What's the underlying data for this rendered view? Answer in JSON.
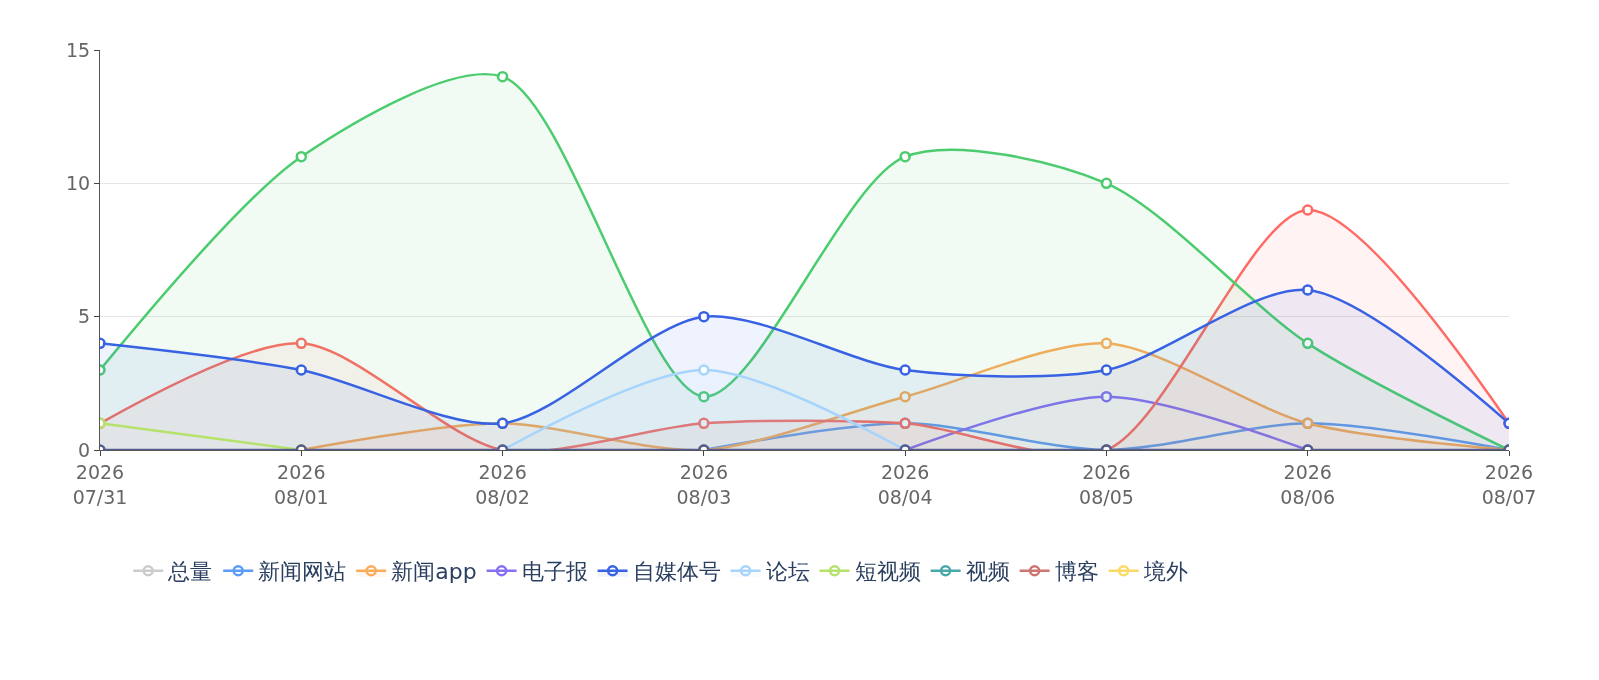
{
  "chart_data": {
    "type": "line",
    "x": [
      "2026-07-31",
      "2026-08-01",
      "2026-08-02",
      "2026-08-03",
      "2026-08-04",
      "2026-08-05",
      "2026-08-06",
      "2026-08-07"
    ],
    "xlim": [
      "2026-07-31",
      "2026-08-07"
    ],
    "xticks": [
      {
        "value": "2026-07-31",
        "label": "2026\n07/31"
      },
      {
        "value": "2026-08-01",
        "label": "2026\n08/01"
      },
      {
        "value": "2026-08-02",
        "label": "2026\n08/02"
      },
      {
        "value": "2026-08-03",
        "label": "2026\n08/03"
      },
      {
        "value": "2026-08-04",
        "label": "2026\n08/04"
      },
      {
        "value": "2026-08-05",
        "label": "2026\n08/05"
      },
      {
        "value": "2026-08-06",
        "label": "2026\n08/06"
      },
      {
        "value": "2026-08-07",
        "label": "2026\n08/07"
      }
    ],
    "ylim": [
      0,
      15
    ],
    "yticks": [
      0,
      5,
      10,
      15
    ],
    "grid": "y",
    "legend": "bottom",
    "marker": "circle",
    "series": [
      {
        "name": "总量",
        "color": "#cccccc",
        "values": [
          null,
          null,
          null,
          null,
          null,
          null,
          null,
          null
        ]
      },
      {
        "name": "新闻网站",
        "color": "#5b9cf8",
        "values": [
          null,
          null,
          null,
          0,
          1,
          0,
          1,
          0
        ]
      },
      {
        "name": "新闻app",
        "color": "#fbab5a",
        "type": "area",
        "values": [
          null,
          0,
          1,
          0,
          2,
          4,
          1,
          0
        ]
      },
      {
        "name": "电子报",
        "color": "#8a6ef3",
        "values": [
          null,
          null,
          null,
          null,
          0,
          2,
          0,
          null
        ]
      },
      {
        "color": "#fe6b64",
        "type": "area",
        "values": [
          1,
          4,
          0,
          1,
          1,
          0,
          9,
          1
        ]
      },
      {
        "color": "#4ccc6f",
        "type": "area",
        "values": [
          3,
          11,
          14,
          2,
          11,
          10,
          4,
          0
        ]
      },
      {
        "name": "自媒体号",
        "color": "#3762e3",
        "type": "area",
        "values": [
          4,
          3,
          1,
          5,
          3,
          3,
          6,
          1
        ]
      },
      {
        "name": "论坛",
        "color": "#a7d4fc",
        "type": "area",
        "values": [
          null,
          null,
          0,
          3,
          0,
          null,
          null,
          null
        ]
      },
      {
        "name": "短视频",
        "color": "#b5e26b",
        "values": [
          1,
          0,
          null,
          null,
          null,
          null,
          null,
          null
        ]
      },
      {
        "name": "视频",
        "color": "#4aa8a9",
        "values": [
          null,
          null,
          null,
          null,
          null,
          null,
          null,
          null
        ]
      },
      {
        "name": "博客",
        "color": "#cf7571",
        "values": [
          null,
          null,
          null,
          null,
          null,
          null,
          null,
          null
        ]
      },
      {
        "name": "境外",
        "color": "#fcd865",
        "values": [
          null,
          null,
          null,
          null,
          null,
          null,
          null,
          null
        ]
      },
      {
        "color": "#37e3f5",
        "values": [
          null,
          null,
          null,
          null,
          null,
          null,
          null,
          null
        ]
      },
      {
        "color": "#535d8f",
        "values": [
          0,
          0,
          0,
          0,
          0,
          0,
          0,
          0
        ]
      }
    ]
  }
}
